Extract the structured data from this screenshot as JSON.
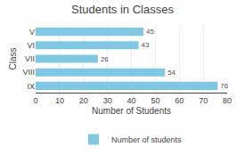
{
  "chart_data": {
    "type": "bar",
    "orientation": "horizontal",
    "title": "Students in Classes",
    "categories": [
      "IX",
      "VIII",
      "VII",
      "VI",
      "V"
    ],
    "series": [
      {
        "name": "Number of students",
        "color": "#7ec8e3",
        "values": [
          76,
          54,
          26,
          43,
          45
        ]
      }
    ],
    "xlabel": "Number of Students",
    "ylabel": "Class",
    "xlim": [
      0,
      80
    ],
    "xticks": [
      0,
      10,
      20,
      30,
      40,
      50,
      60,
      70,
      80
    ],
    "grid": true,
    "data_labels": true,
    "legend": "bottom"
  }
}
